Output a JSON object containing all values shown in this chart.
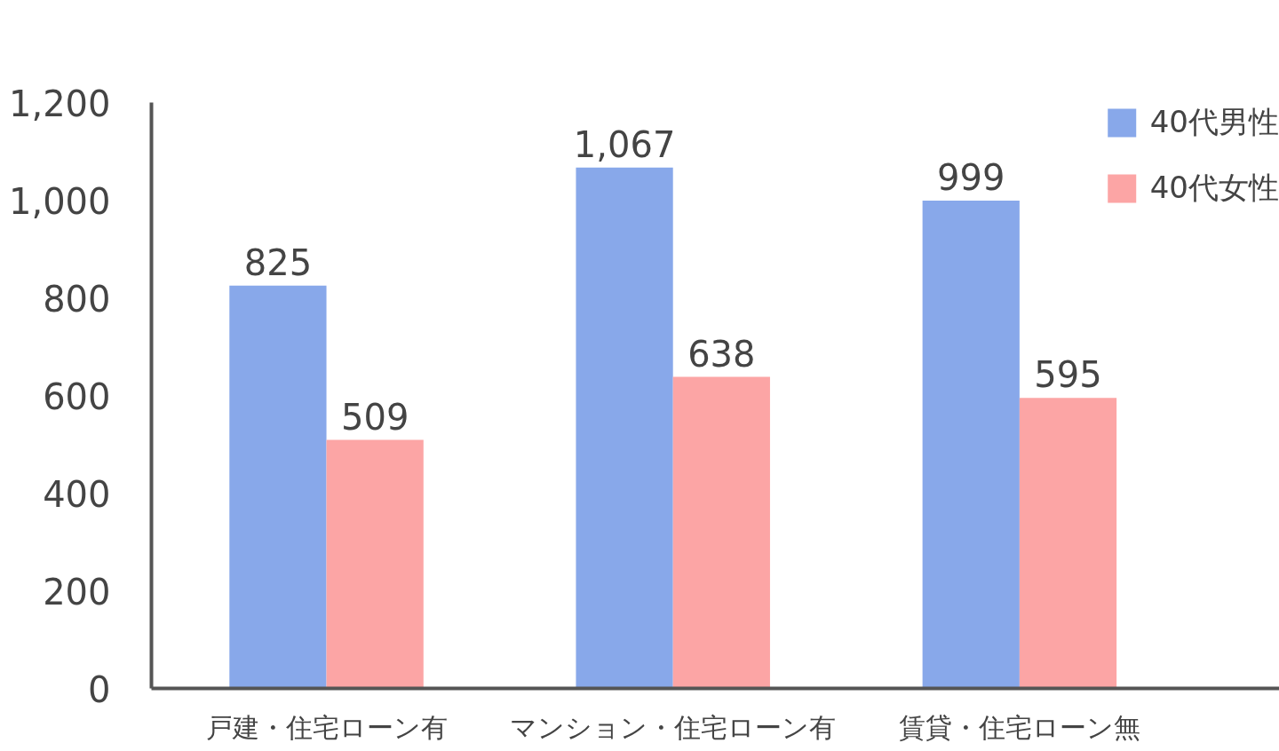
{
  "chart_data": {
    "type": "bar",
    "categories": [
      "戸建・住宅ローン有",
      "マンション・住宅ローン有",
      "賃貸・住宅ローン無"
    ],
    "series": [
      {
        "name": "40代男性",
        "color": "#88a8ea",
        "values": [
          825,
          1067,
          999
        ],
        "value_labels": [
          "825",
          "1,067",
          "999"
        ]
      },
      {
        "name": "40代女性",
        "color": "#fca5a5",
        "values": [
          509,
          638,
          595
        ],
        "value_labels": [
          "509",
          "638",
          "595"
        ]
      }
    ],
    "ylim": [
      0,
      1200
    ],
    "yticks": [
      0,
      200,
      400,
      600,
      800,
      {
        "value": 1000,
        "label": "1,000"
      },
      {
        "value": 1200,
        "label": "1,200"
      }
    ],
    "grid": false,
    "legend": "top right"
  }
}
